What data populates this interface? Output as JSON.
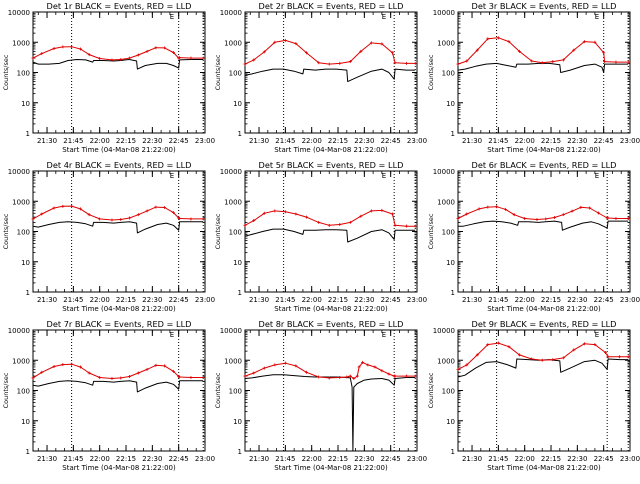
{
  "colors": {
    "events": "#000000",
    "lld": "#e00000",
    "axes": "#000000",
    "marker_lines": "#000000"
  },
  "shared": {
    "xlabel": "Start Time (04-Mar-08 21:22:00)",
    "ylabel": "Counts/sec",
    "corner_label": "E",
    "y_tick_labels": [
      "1",
      "10",
      "100",
      "1000",
      "10000"
    ],
    "x_tick_labels": [
      "21:30",
      "21:45",
      "22:00",
      "22:15",
      "22:30",
      "22:45",
      "23:00"
    ],
    "marker_note": "dotted vertical markers"
  },
  "chart_data": [
    {
      "type": "line",
      "title": "Det 1r BLACK = Events, RED = LLD",
      "xlabel": "Start Time (04-Mar-08 21:22:00)",
      "ylabel": "Counts/sec",
      "x_unit": "minutes after 21:22",
      "xlim": [
        0,
        98
      ],
      "ylim": [
        1,
        10000
      ],
      "yscale": "log",
      "markers_x": [
        22,
        83,
        97
      ],
      "series": [
        {
          "name": "BLACK = Events",
          "color": "#000000",
          "x": [
            0,
            3,
            9,
            15,
            20,
            25,
            30,
            34,
            34.5,
            40,
            46,
            50,
            55,
            59,
            59.5,
            64,
            71,
            76,
            80,
            83,
            83.5,
            90,
            97
          ],
          "y": [
            220,
            190,
            190,
            200,
            250,
            270,
            260,
            220,
            250,
            250,
            240,
            250,
            270,
            240,
            130,
            170,
            200,
            200,
            170,
            140,
            260,
            270,
            270
          ]
        },
        {
          "name": "RED = LLD",
          "color": "#e00000",
          "x": [
            0,
            5,
            12,
            17,
            22,
            27,
            32,
            38,
            45,
            50,
            55,
            60,
            65,
            70,
            75,
            80,
            83,
            83.5,
            90,
            97
          ],
          "y": [
            300,
            420,
            620,
            700,
            710,
            600,
            390,
            290,
            260,
            270,
            300,
            380,
            500,
            660,
            650,
            460,
            300,
            310,
            300,
            300
          ]
        }
      ]
    },
    {
      "type": "line",
      "title": "Det 2r BLACK = Events, RED = LLD",
      "xlabel": "Start Time (04-Mar-08 21:22:00)",
      "ylabel": "Counts/sec",
      "x_unit": "minutes after 21:22",
      "xlim": [
        0,
        98
      ],
      "ylim": [
        1,
        10000
      ],
      "yscale": "log",
      "markers_x": [
        22,
        85,
        97
      ],
      "series": [
        {
          "name": "BLACK = Events",
          "color": "#000000",
          "x": [
            0,
            4,
            10,
            16,
            22,
            28,
            33,
            33.5,
            40,
            46,
            52,
            58,
            58.5,
            64,
            72,
            78,
            82,
            85,
            85.5,
            92,
            97
          ],
          "y": [
            80,
            90,
            110,
            130,
            130,
            110,
            90,
            130,
            120,
            130,
            130,
            120,
            50,
            70,
            110,
            130,
            100,
            60,
            130,
            120,
            120
          ]
        },
        {
          "name": "RED = LLD",
          "color": "#e00000",
          "x": [
            0,
            5,
            11,
            17,
            23,
            29,
            35,
            42,
            48,
            54,
            60,
            66,
            72,
            78,
            84,
            85.5,
            92,
            97
          ],
          "y": [
            190,
            260,
            480,
            1000,
            1150,
            900,
            450,
            210,
            190,
            200,
            230,
            500,
            950,
            880,
            450,
            210,
            200,
            200
          ]
        }
      ]
    },
    {
      "type": "line",
      "title": "Det 3r BLACK = Events, RED = LLD",
      "xlabel": "Start Time (04-Mar-08 21:22:00)",
      "ylabel": "Counts/sec",
      "x_unit": "minutes after 21:22",
      "xlim": [
        0,
        98
      ],
      "ylim": [
        1,
        10000
      ],
      "yscale": "log",
      "markers_x": [
        22,
        83,
        97
      ],
      "series": [
        {
          "name": "BLACK = Events",
          "color": "#000000",
          "x": [
            0,
            4,
            10,
            16,
            22,
            28,
            33,
            33.5,
            40,
            46,
            52,
            58,
            58.5,
            64,
            72,
            78,
            82,
            83,
            83.5,
            90,
            97
          ],
          "y": [
            120,
            130,
            160,
            190,
            200,
            170,
            150,
            190,
            190,
            200,
            200,
            180,
            100,
            120,
            170,
            190,
            150,
            100,
            190,
            190,
            190
          ]
        },
        {
          "name": "RED = LLD",
          "color": "#e00000",
          "x": [
            0,
            5,
            11,
            17,
            23,
            29,
            35,
            42,
            48,
            54,
            60,
            66,
            72,
            78,
            83,
            83.5,
            90,
            97
          ],
          "y": [
            190,
            240,
            550,
            1300,
            1400,
            1050,
            500,
            240,
            210,
            230,
            260,
            550,
            1050,
            1000,
            450,
            230,
            220,
            220
          ]
        }
      ]
    },
    {
      "type": "line",
      "title": "Det 4r BLACK = Events, RED = LLD",
      "xlabel": "Start Time (04-Mar-08 21:22:00)",
      "ylabel": "Counts/sec",
      "x_unit": "minutes after 21:22",
      "xlim": [
        0,
        98
      ],
      "ylim": [
        1,
        10000
      ],
      "yscale": "log",
      "markers_x": [
        22,
        83,
        97
      ],
      "series": [
        {
          "name": "BLACK = Events",
          "color": "#000000",
          "x": [
            0,
            3,
            9,
            15,
            20,
            25,
            30,
            34,
            34.5,
            40,
            46,
            50,
            55,
            59,
            59.5,
            64,
            71,
            76,
            80,
            83,
            83.5,
            90,
            97
          ],
          "y": [
            150,
            140,
            170,
            200,
            210,
            200,
            180,
            150,
            200,
            200,
            190,
            200,
            210,
            190,
            90,
            120,
            170,
            190,
            160,
            110,
            210,
            210,
            210
          ]
        },
        {
          "name": "RED = LLD",
          "color": "#e00000",
          "x": [
            0,
            5,
            12,
            17,
            22,
            27,
            32,
            38,
            45,
            50,
            55,
            60,
            65,
            70,
            75,
            80,
            83,
            83.5,
            90,
            97
          ],
          "y": [
            260,
            380,
            600,
            680,
            690,
            560,
            360,
            260,
            240,
            250,
            280,
            360,
            480,
            640,
            620,
            420,
            280,
            270,
            260,
            260
          ]
        }
      ]
    },
    {
      "type": "line",
      "title": "Det 5r BLACK = Events, RED = LLD",
      "xlabel": "Start Time (04-Mar-08 21:22:00)",
      "ylabel": "Counts/sec",
      "x_unit": "minutes after 21:22",
      "xlim": [
        0,
        98
      ],
      "ylim": [
        1,
        10000
      ],
      "yscale": "log",
      "markers_x": [
        22,
        85,
        97
      ],
      "series": [
        {
          "name": "BLACK = Events",
          "color": "#000000",
          "x": [
            0,
            4,
            10,
            16,
            22,
            28,
            33,
            33.5,
            40,
            46,
            52,
            58,
            58.5,
            64,
            72,
            78,
            82,
            85,
            85.5,
            92,
            97
          ],
          "y": [
            70,
            80,
            100,
            120,
            120,
            100,
            80,
            110,
            110,
            115,
            115,
            110,
            45,
            60,
            100,
            115,
            90,
            55,
            110,
            110,
            110
          ]
        },
        {
          "name": "RED = LLD",
          "color": "#e00000",
          "x": [
            0,
            5,
            11,
            17,
            23,
            29,
            35,
            42,
            48,
            54,
            60,
            66,
            72,
            78,
            84,
            85.5,
            92,
            97
          ],
          "y": [
            160,
            230,
            400,
            480,
            450,
            380,
            300,
            200,
            160,
            170,
            200,
            320,
            480,
            500,
            380,
            160,
            150,
            150
          ]
        }
      ]
    },
    {
      "type": "line",
      "title": "Det 6r BLACK = Events, RED = LLD",
      "xlabel": "Start Time (04-Mar-08 21:22:00)",
      "ylabel": "Counts/sec",
      "x_unit": "minutes after 21:22",
      "xlim": [
        0,
        98
      ],
      "ylim": [
        1,
        10000
      ],
      "yscale": "log",
      "markers_x": [
        22,
        85,
        97
      ],
      "series": [
        {
          "name": "BLACK = Events",
          "color": "#000000",
          "x": [
            0,
            3,
            9,
            15,
            20,
            25,
            30,
            34,
            34.5,
            40,
            46,
            50,
            55,
            59,
            59.5,
            64,
            71,
            76,
            80,
            85,
            85.5,
            90,
            97
          ],
          "y": [
            150,
            150,
            180,
            210,
            220,
            210,
            190,
            160,
            210,
            210,
            200,
            210,
            220,
            200,
            110,
            140,
            190,
            210,
            180,
            130,
            220,
            220,
            220
          ]
        },
        {
          "name": "RED = LLD",
          "color": "#e00000",
          "x": [
            0,
            5,
            12,
            17,
            22,
            27,
            32,
            38,
            45,
            50,
            55,
            60,
            65,
            70,
            75,
            80,
            85,
            85.5,
            90,
            97
          ],
          "y": [
            270,
            380,
            560,
            640,
            660,
            540,
            360,
            270,
            250,
            260,
            290,
            360,
            470,
            630,
            600,
            410,
            280,
            280,
            270,
            270
          ]
        }
      ]
    },
    {
      "type": "line",
      "title": "Det 7r BLACK = Events, RED = LLD",
      "xlabel": "Start Time (04-Mar-08 21:22:00)",
      "ylabel": "Counts/sec",
      "x_unit": "minutes after 21:22",
      "xlim": [
        0,
        98
      ],
      "ylim": [
        1,
        10000
      ],
      "yscale": "log",
      "markers_x": [
        22,
        83,
        97
      ],
      "series": [
        {
          "name": "BLACK = Events",
          "color": "#000000",
          "x": [
            0,
            3,
            9,
            15,
            20,
            25,
            30,
            34,
            34.5,
            40,
            46,
            50,
            55,
            59,
            59.5,
            64,
            71,
            76,
            80,
            83,
            83.5,
            90,
            97
          ],
          "y": [
            150,
            140,
            170,
            200,
            210,
            200,
            180,
            150,
            200,
            200,
            190,
            200,
            210,
            190,
            90,
            120,
            170,
            190,
            160,
            110,
            210,
            210,
            210
          ]
        },
        {
          "name": "RED = LLD",
          "color": "#e00000",
          "x": [
            0,
            5,
            12,
            17,
            22,
            27,
            32,
            38,
            45,
            50,
            55,
            60,
            65,
            70,
            75,
            80,
            83,
            83.5,
            90,
            97
          ],
          "y": [
            260,
            400,
            620,
            720,
            740,
            600,
            380,
            270,
            250,
            260,
            290,
            380,
            500,
            680,
            650,
            430,
            290,
            280,
            270,
            270
          ]
        }
      ]
    },
    {
      "type": "line",
      "title": "Det 8r BLACK = Events, RED = LLD",
      "xlabel": "Start Time (04-Mar-08 21:22:00)",
      "ylabel": "Counts/sec",
      "x_unit": "minutes after 21:22",
      "xlim": [
        0,
        98
      ],
      "ylim": [
        1,
        10000
      ],
      "yscale": "log",
      "markers_x": [
        22,
        85,
        97
      ],
      "series": [
        {
          "name": "BLACK = Events",
          "color": "#000000",
          "x": [
            0,
            4,
            10,
            16,
            22,
            28,
            34,
            40,
            46,
            52,
            58,
            60,
            61,
            61.5,
            62,
            64,
            68,
            72,
            78,
            82,
            85,
            85.5,
            92,
            97
          ],
          "y": [
            250,
            260,
            300,
            330,
            330,
            310,
            290,
            280,
            280,
            280,
            270,
            260,
            130,
            1,
            130,
            170,
            220,
            240,
            250,
            220,
            150,
            250,
            270,
            270
          ]
        },
        {
          "name": "RED = LLD",
          "color": "#e00000",
          "x": [
            0,
            5,
            11,
            17,
            23,
            29,
            35,
            42,
            48,
            54,
            58,
            60,
            62,
            64,
            65,
            67,
            70,
            74,
            78,
            82,
            85,
            85.5,
            92,
            97
          ],
          "y": [
            300,
            380,
            550,
            700,
            800,
            650,
            400,
            280,
            260,
            270,
            280,
            300,
            250,
            300,
            600,
            850,
            700,
            600,
            450,
            350,
            300,
            300,
            300,
            300
          ]
        }
      ]
    },
    {
      "type": "line",
      "title": "Det 9r BLACK = Events, RED = LLD",
      "xlabel": "Start Time (04-Mar-08 21:22:00)",
      "ylabel": "Counts/sec",
      "x_unit": "minutes after 21:22",
      "xlim": [
        0,
        98
      ],
      "ylim": [
        1,
        10000
      ],
      "yscale": "log",
      "markers_x": [
        22,
        85,
        97
      ],
      "series": [
        {
          "name": "BLACK = Events",
          "color": "#000000",
          "x": [
            0,
            4,
            10,
            16,
            22,
            28,
            33,
            33.5,
            40,
            46,
            52,
            58,
            58.5,
            64,
            72,
            78,
            82,
            85,
            85.5,
            92,
            97
          ],
          "y": [
            280,
            320,
            550,
            850,
            900,
            720,
            550,
            1100,
            1050,
            1000,
            1050,
            950,
            400,
            550,
            900,
            1000,
            800,
            500,
            1100,
            1050,
            1050
          ]
        },
        {
          "name": "RED = LLD",
          "color": "#e00000",
          "x": [
            0,
            5,
            11,
            17,
            23,
            29,
            35,
            42,
            48,
            54,
            60,
            66,
            72,
            78,
            84,
            85.5,
            92,
            97
          ],
          "y": [
            500,
            700,
            1500,
            3300,
            3700,
            2800,
            1500,
            1100,
            1000,
            1050,
            1200,
            2200,
            3500,
            3300,
            1800,
            1300,
            1300,
            1300
          ]
        }
      ]
    }
  ]
}
